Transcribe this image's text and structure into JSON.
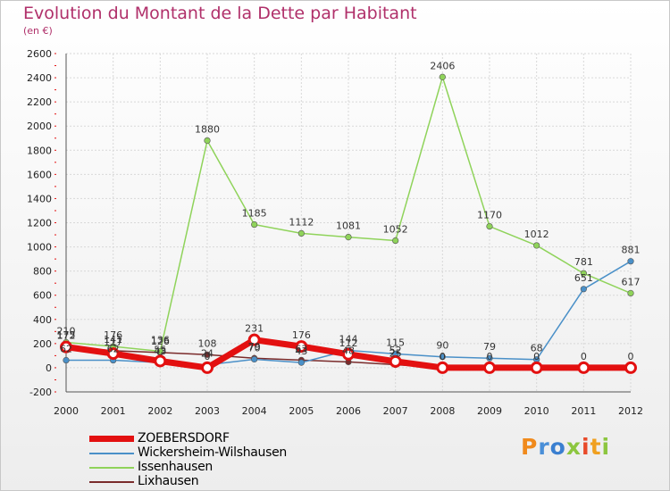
{
  "title": "Evolution du Montant de la Dette par Habitant",
  "subtitle": "(en €)",
  "logo": {
    "text": "Proxiti",
    "letters": [
      "P",
      "r",
      "o",
      "x",
      "i",
      "t",
      "i"
    ],
    "colors": [
      "#f08a1c",
      "#4a8fd8",
      "#3a7fd0",
      "#8cc63f",
      "#e84a2a",
      "#f0a020",
      "#8cc63f"
    ]
  },
  "chart_data": {
    "type": "line",
    "title": "Evolution du Montant de la Dette par Habitant",
    "ylabel": "(en €)",
    "xlabel": "",
    "ylim": [
      -200,
      2600
    ],
    "yticks": [
      -200,
      0,
      200,
      400,
      600,
      800,
      1000,
      1200,
      1400,
      1600,
      1800,
      2000,
      2200,
      2400,
      2600
    ],
    "categories": [
      "2000",
      "2001",
      "2002",
      "2003",
      "2004",
      "2005",
      "2006",
      "2007",
      "2008",
      "2009",
      "2010",
      "2011",
      "2012"
    ],
    "series": [
      {
        "name": "Lixhausen",
        "color": "#7a2b2b",
        "values": [
          175,
          141,
          126,
          108,
          79,
          63,
          48,
          25,
          0,
          0,
          0,
          0,
          0
        ],
        "labels": [
          "175",
          "141",
          "126",
          "108",
          "79",
          "63",
          "48",
          "25",
          "",
          "",
          "",
          "",
          ""
        ]
      },
      {
        "name": "Wickersheim-Wilshausen",
        "color": "#4a90c8",
        "values": [
          62,
          62,
          43,
          24,
          70,
          43,
          144,
          115,
          90,
          79,
          68,
          651,
          881
        ],
        "labels": [
          "62",
          "62",
          "43",
          "24",
          "70",
          "43",
          "144",
          "115",
          "90",
          "79",
          "68",
          "651",
          "881"
        ]
      },
      {
        "name": "Issenhausen",
        "color": "#8fd35a",
        "values": [
          210,
          176,
          136,
          1880,
          1185,
          1112,
          1081,
          1052,
          2406,
          1170,
          1012,
          781,
          617
        ],
        "labels": [
          "210",
          "176",
          "136",
          "1880",
          "1185",
          "1112",
          "1081",
          "1052",
          "2406",
          "1170",
          "1012",
          "781",
          "617"
        ]
      },
      {
        "name": "ZOEBERSDORF",
        "color": "#e31010",
        "values": [
          172,
          117,
          55,
          0,
          231,
          176,
          112,
          52,
          0,
          0,
          0,
          0,
          0
        ],
        "labels": [
          "172",
          "117",
          "55",
          "0",
          "231",
          "176",
          "112",
          "52",
          "0",
          "0",
          "0",
          "0",
          "0"
        ]
      }
    ],
    "legend": [
      {
        "name": "ZOEBERSDORF",
        "color": "#e31010"
      },
      {
        "name": "Wickersheim-Wilshausen",
        "color": "#4a90c8"
      },
      {
        "name": "Issenhausen",
        "color": "#8fd35a"
      },
      {
        "name": "Lixhausen",
        "color": "#7a2b2b"
      }
    ]
  }
}
